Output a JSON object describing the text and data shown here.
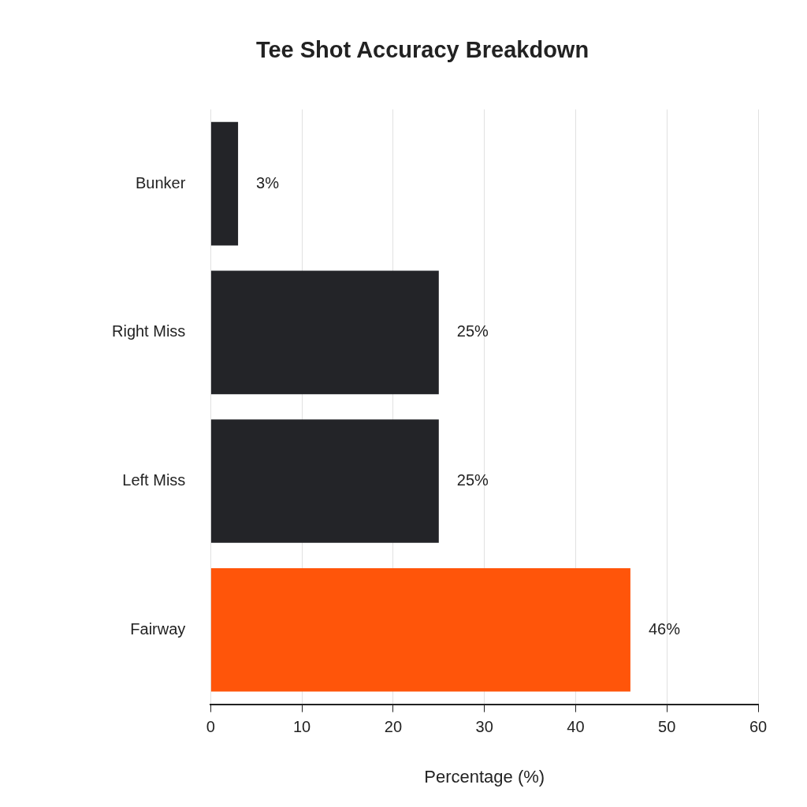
{
  "chart_data": {
    "type": "bar",
    "orientation": "horizontal",
    "title": "Tee Shot Accuracy Breakdown",
    "xlabel": "Percentage (%)",
    "categories": [
      "Bunker",
      "Right Miss",
      "Left Miss",
      "Fairway"
    ],
    "values": [
      3,
      25,
      25,
      46
    ],
    "colors": [
      "#232428",
      "#232428",
      "#232428",
      "#ff550a"
    ],
    "value_labels": [
      "3%",
      "25%",
      "25%",
      "46%"
    ],
    "xlim": [
      0,
      60
    ],
    "xticks": [
      0,
      10,
      20,
      30,
      40,
      50,
      60
    ],
    "grid": "x",
    "legend": false
  }
}
